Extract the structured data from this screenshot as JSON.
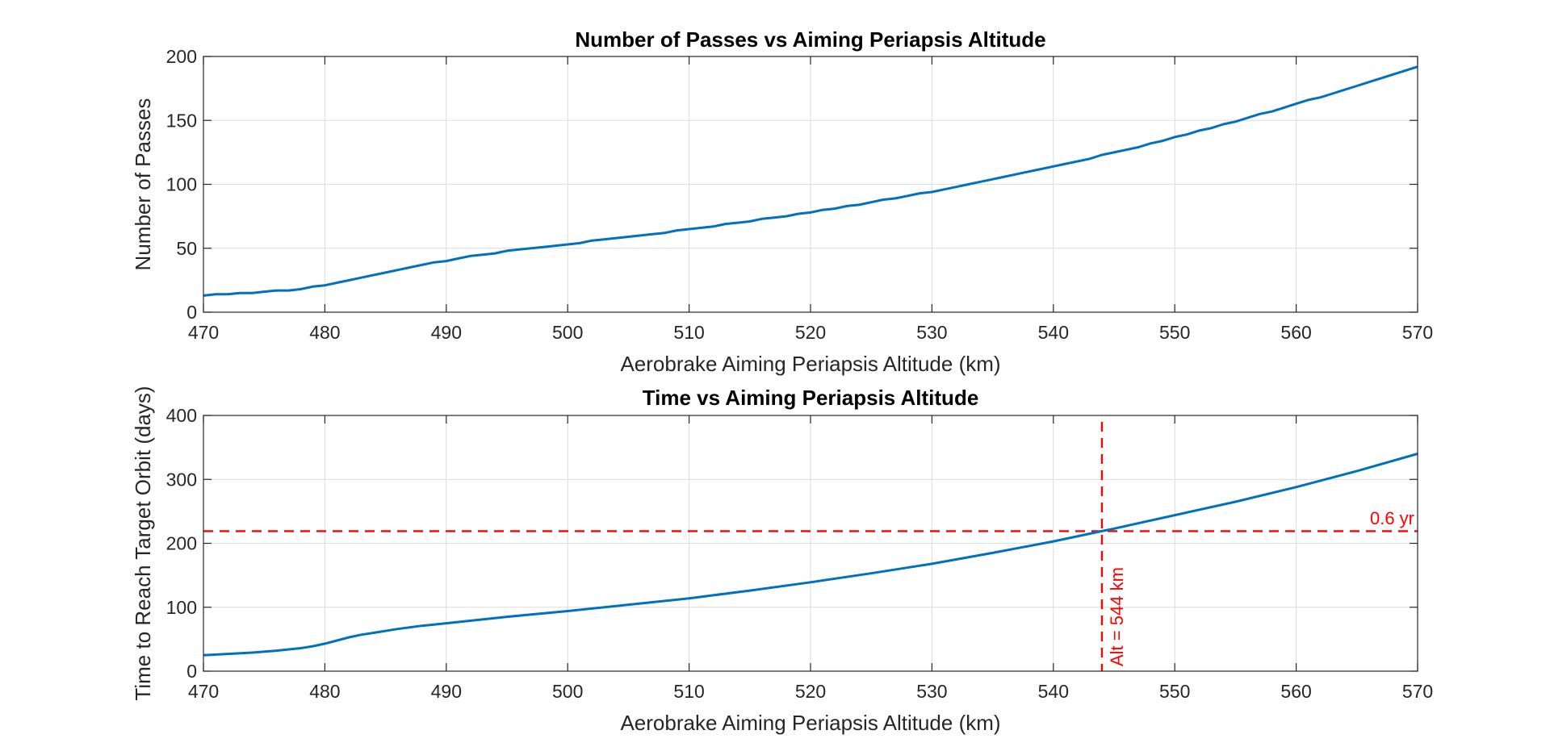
{
  "colors": {
    "line": "#0072BD",
    "annotation": "#FF0000",
    "grid": "#DCDCDC",
    "axis": "#262626"
  },
  "chart_data": [
    {
      "type": "line",
      "title": "Number of Passes vs Aiming Periapsis Altitude",
      "xlabel": "Aerobrake Aiming Periapsis Altitude (km)",
      "ylabel": "Number of Passes",
      "xlim": [
        470,
        570
      ],
      "ylim": [
        0,
        200
      ],
      "xticks": [
        470,
        480,
        490,
        500,
        510,
        520,
        530,
        540,
        550,
        560,
        570
      ],
      "yticks": [
        0,
        50,
        100,
        150,
        200
      ],
      "grid": true,
      "series": [
        {
          "x": [
            470,
            471,
            472,
            473,
            474,
            475,
            476,
            477,
            478,
            479,
            480,
            481,
            482,
            483,
            484,
            485,
            486,
            487,
            488,
            489,
            490,
            491,
            492,
            493,
            494,
            495,
            496,
            497,
            498,
            499,
            500,
            501,
            502,
            503,
            504,
            505,
            506,
            507,
            508,
            509,
            510,
            511,
            512,
            513,
            514,
            515,
            516,
            517,
            518,
            519,
            520,
            521,
            522,
            523,
            524,
            525,
            526,
            527,
            528,
            529,
            530,
            531,
            532,
            533,
            534,
            535,
            536,
            537,
            538,
            539,
            540,
            541,
            542,
            543,
            544,
            545,
            546,
            547,
            548,
            549,
            550,
            551,
            552,
            553,
            554,
            555,
            556,
            557,
            558,
            559,
            560,
            561,
            562,
            563,
            564,
            565,
            566,
            567,
            568,
            569,
            570
          ],
          "y": [
            13,
            14,
            14,
            15,
            15,
            16,
            17,
            17,
            18,
            20,
            21,
            23,
            25,
            27,
            29,
            31,
            33,
            35,
            37,
            39,
            40,
            42,
            44,
            45,
            46,
            48,
            49,
            50,
            51,
            52,
            53,
            54,
            56,
            57,
            58,
            59,
            60,
            61,
            62,
            64,
            65,
            66,
            67,
            69,
            70,
            71,
            73,
            74,
            75,
            77,
            78,
            80,
            81,
            83,
            84,
            86,
            88,
            89,
            91,
            93,
            94,
            96,
            98,
            100,
            102,
            104,
            106,
            108,
            110,
            112,
            114,
            116,
            118,
            120,
            123,
            125,
            127,
            129,
            132,
            134,
            137,
            139,
            142,
            144,
            147,
            149,
            152,
            155,
            157,
            160,
            163,
            166,
            168,
            171,
            174,
            177,
            180,
            183,
            186,
            189,
            192
          ]
        }
      ]
    },
    {
      "type": "line",
      "title": "Time vs Aiming Periapsis Altitude",
      "xlabel": "Aerobrake Aiming Periapsis Altitude (km)",
      "ylabel": "Time to Reach Target Orbit (days)",
      "xlim": [
        470,
        570
      ],
      "ylim": [
        0,
        400
      ],
      "xticks": [
        470,
        480,
        490,
        500,
        510,
        520,
        530,
        540,
        550,
        560,
        570
      ],
      "yticks": [
        0,
        100,
        200,
        300,
        400
      ],
      "grid": true,
      "series": [
        {
          "x": [
            470,
            472,
            474,
            476,
            478,
            479,
            480,
            481,
            482,
            483,
            484,
            486,
            488,
            490,
            495,
            500,
            505,
            510,
            515,
            520,
            525,
            530,
            535,
            540,
            544,
            545,
            550,
            555,
            560,
            565,
            570
          ],
          "y": [
            25,
            27,
            29,
            32,
            36,
            39,
            43,
            48,
            53,
            57,
            60,
            66,
            71,
            75,
            85,
            94,
            104,
            114,
            126,
            139,
            153,
            168,
            185,
            203,
            219,
            223,
            244,
            265,
            288,
            313,
            340
          ]
        }
      ],
      "reference_lines": [
        {
          "orientation": "horizontal",
          "value": 219,
          "style": "dashed",
          "label": "0.6 yr"
        },
        {
          "orientation": "vertical",
          "value": 544,
          "style": "dashed",
          "label": "Alt = 544 km"
        }
      ]
    }
  ]
}
